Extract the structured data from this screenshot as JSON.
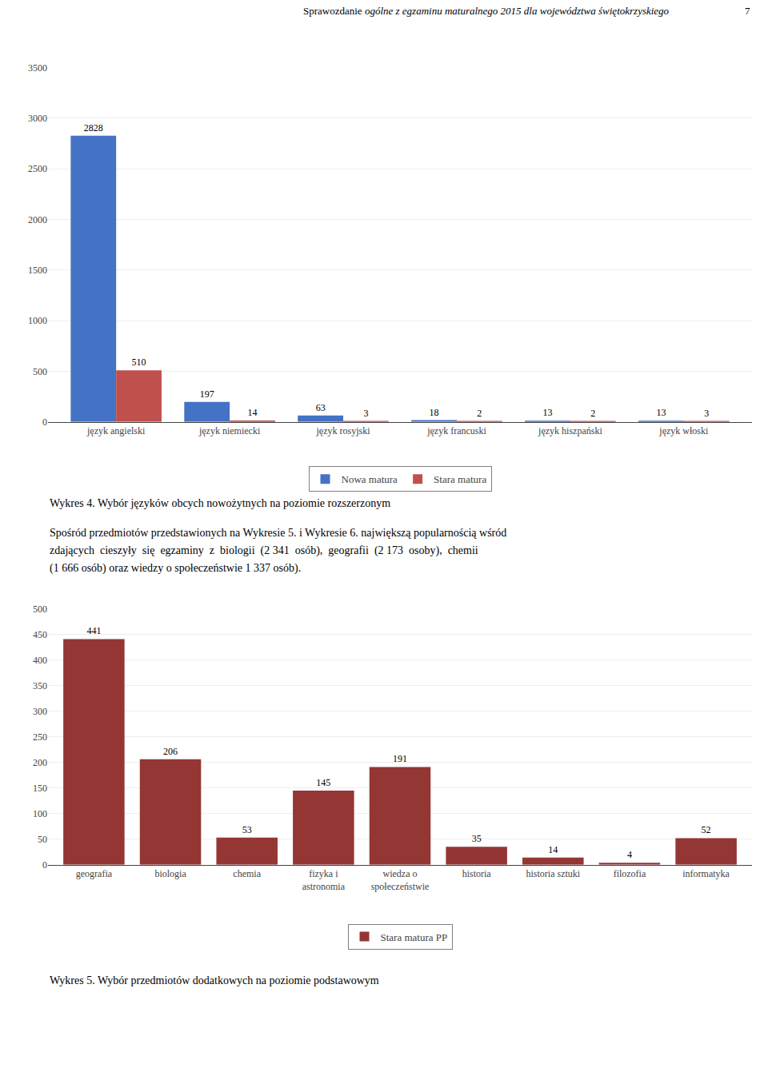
{
  "chart_data": [
    {
      "type": "bar",
      "title": "Wykres 4. Wybór języków obcych nowożytnych na poziomie rozszerzonym",
      "categories": [
        "język angielski",
        "język niemiecki",
        "język rosyjski",
        "język francuski",
        "język hiszpański",
        "język włoski"
      ],
      "series": [
        {
          "name": "Nowa matura",
          "color": "#4472C4",
          "values": [
            2828,
            197,
            63,
            18,
            13,
            13
          ]
        },
        {
          "name": "Stara matura",
          "color": "#C0504D",
          "values": [
            510,
            14,
            3,
            2,
            2,
            3
          ]
        }
      ],
      "ylim": [
        0,
        3500
      ],
      "yticks": [
        0,
        500,
        1000,
        1500,
        2000,
        2500,
        3000,
        3500
      ],
      "grid": true,
      "data_labels": true,
      "legend": "bottom",
      "annotations": [
        "Sprawozdanie ",
        "ogólne z egzaminu maturalnego 2015 dla województwa świętokrzyskiego",
        "7"
      ]
    },
    {
      "type": "bar",
      "title": "Wykres 5. Wybór przedmiotów dodatkowych na poziomie podstawowym",
      "categories": [
        "geografia",
        "biologia",
        "chemia",
        "fizyka i\nastronomia",
        "wiedza o\nspołeczeństwie",
        "historia",
        "historia sztuki",
        "filozofia",
        "informatyka"
      ],
      "series": [
        {
          "name": "Stara matura PP",
          "color": "#943634",
          "values": [
            441,
            206,
            53,
            145,
            191,
            35,
            14,
            4,
            52
          ]
        }
      ],
      "ylim": [
        0,
        500
      ],
      "yticks": [
        0,
        50,
        100,
        150,
        200,
        250,
        300,
        350,
        400,
        450,
        500
      ],
      "grid": true,
      "data_labels": true,
      "legend": "bottom",
      "annotations": [
        "Spośród przedmiotów przedstawionych na Wykresie 5. i Wykresie 6. największą popularnością wśród",
        "zdających  cieszyły  się  egzaminy  z  biologii  (2 341  osób),  geografii  (2 173  osoby),  chemii",
        "(1 666 osób) oraz wiedzy o społeczeństwie 1 337 osób)."
      ]
    }
  ]
}
